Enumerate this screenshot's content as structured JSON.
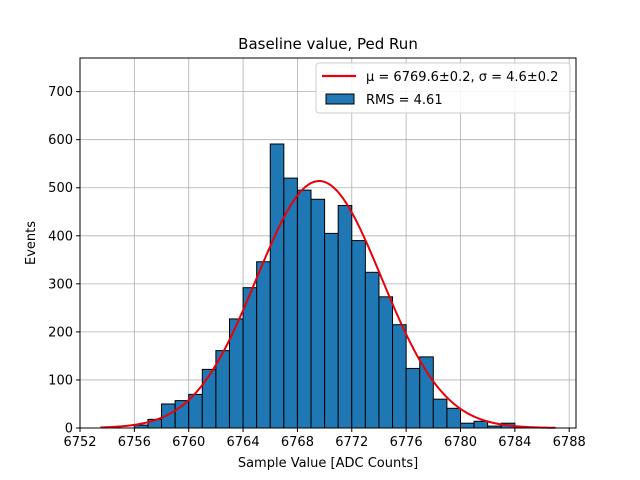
{
  "chart_data": {
    "type": "bar",
    "title": "Baseline value, Ped Run",
    "xlabel": "Sample Value [ADC Counts]",
    "ylabel": "Events",
    "xlim": [
      6752,
      6788.5
    ],
    "ylim": [
      0,
      770
    ],
    "xticks": [
      6752,
      6756,
      6760,
      6764,
      6768,
      6772,
      6776,
      6780,
      6784,
      6788
    ],
    "yticks": [
      0,
      100,
      200,
      300,
      400,
      500,
      600,
      700
    ],
    "grid": true,
    "legend_position": "top-right",
    "bins": [
      {
        "x0": 6756,
        "x1": 6757,
        "value": 6
      },
      {
        "x0": 6757,
        "x1": 6758,
        "value": 18
      },
      {
        "x0": 6758,
        "x1": 6759,
        "value": 50
      },
      {
        "x0": 6759,
        "x1": 6760,
        "value": 57
      },
      {
        "x0": 6760,
        "x1": 6761,
        "value": 70
      },
      {
        "x0": 6761,
        "x1": 6762,
        "value": 122
      },
      {
        "x0": 6762,
        "x1": 6763,
        "value": 161
      },
      {
        "x0": 6763,
        "x1": 6764,
        "value": 227
      },
      {
        "x0": 6764,
        "x1": 6765,
        "value": 292
      },
      {
        "x0": 6765,
        "x1": 6766,
        "value": 346
      },
      {
        "x0": 6766,
        "x1": 6767,
        "value": 591
      },
      {
        "x0": 6767,
        "x1": 6768,
        "value": 520
      },
      {
        "x0": 6768,
        "x1": 6769,
        "value": 495
      },
      {
        "x0": 6769,
        "x1": 6770,
        "value": 476
      },
      {
        "x0": 6770,
        "x1": 6771,
        "value": 405
      },
      {
        "x0": 6771,
        "x1": 6772,
        "value": 463
      },
      {
        "x0": 6772,
        "x1": 6773,
        "value": 390
      },
      {
        "x0": 6773,
        "x1": 6774,
        "value": 324
      },
      {
        "x0": 6774,
        "x1": 6775,
        "value": 273
      },
      {
        "x0": 6775,
        "x1": 6776,
        "value": 215
      },
      {
        "x0": 6776,
        "x1": 6777,
        "value": 124
      },
      {
        "x0": 6777,
        "x1": 6778,
        "value": 148
      },
      {
        "x0": 6778,
        "x1": 6779,
        "value": 60
      },
      {
        "x0": 6779,
        "x1": 6780,
        "value": 41
      },
      {
        "x0": 6780,
        "x1": 6781,
        "value": 10
      },
      {
        "x0": 6781,
        "x1": 6782,
        "value": 14
      },
      {
        "x0": 6782,
        "x1": 6783,
        "value": 4
      },
      {
        "x0": 6783,
        "x1": 6784,
        "value": 10
      },
      {
        "x0": 6784,
        "x1": 6785,
        "value": 1
      }
    ],
    "fit": {
      "type": "gaussian",
      "mu": 6769.6,
      "sigma": 4.6,
      "amplitude": 514,
      "x_range": [
        6753.5,
        6787
      ]
    },
    "legend": [
      {
        "label_prefix": "μ = 6769.6±0.2, ",
        "label_suffix": "σ = 4.6±0.2",
        "kind": "line"
      },
      {
        "label": "RMS = 4.61",
        "kind": "patch"
      }
    ],
    "colors": {
      "bar_fill": "#1f77b4",
      "bar_edge": "#000000",
      "fit_line": "#e8000b",
      "grid": "#b0b0b0"
    }
  }
}
